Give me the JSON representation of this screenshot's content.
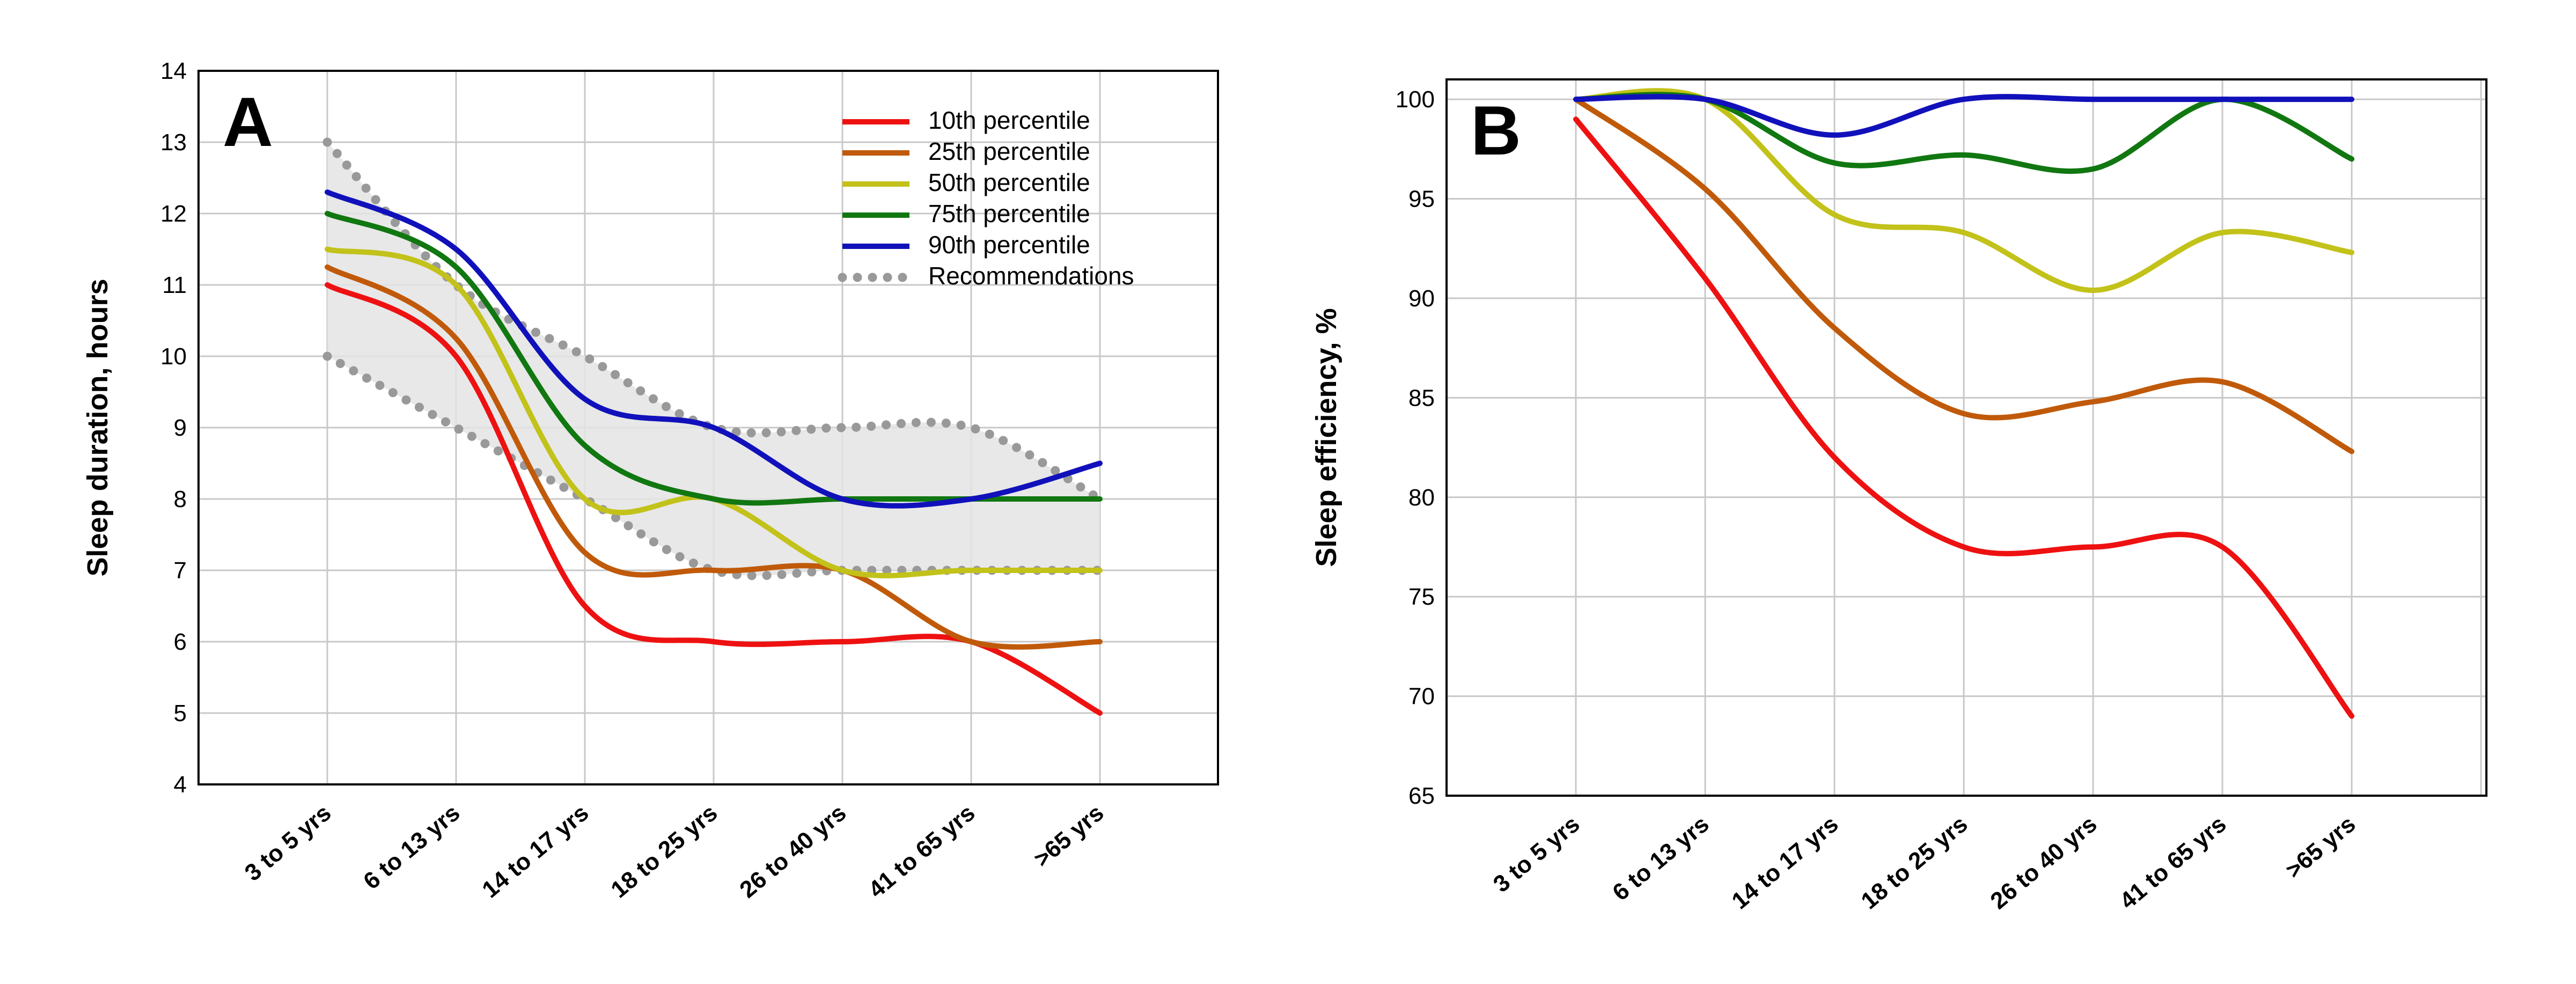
{
  "chart_data": [
    {
      "panel": "A",
      "type": "line",
      "ylabel": "Sleep duration, hours",
      "ylim": [
        4,
        14
      ],
      "yticks": [
        4,
        5,
        6,
        7,
        8,
        9,
        10,
        11,
        12,
        13,
        14
      ],
      "categories": [
        "3 to 5 yrs",
        "6 to 13 yrs",
        "14 to 17 yrs",
        "18 to 25 yrs",
        "26 to 40 yrs",
        "41 to 65 yrs",
        ">65 yrs"
      ],
      "grid": true,
      "legend": "top-right",
      "series": [
        {
          "name": "10th percentile",
          "color": "#ee1111",
          "values": [
            11,
            10,
            6.5,
            6,
            6,
            6,
            5
          ]
        },
        {
          "name": "25th percentile",
          "color": "#c05a0a",
          "values": [
            11.25,
            10.25,
            7.25,
            7,
            7,
            6,
            6
          ]
        },
        {
          "name": "50th percentile",
          "color": "#c2c21a",
          "values": [
            11.5,
            11,
            8,
            8,
            7,
            7,
            7
          ]
        },
        {
          "name": "75th percentile",
          "color": "#117711",
          "values": [
            12,
            11.25,
            8.75,
            8,
            8,
            8,
            8
          ]
        },
        {
          "name": "90th percentile",
          "color": "#1111bb",
          "values": [
            12.3,
            11.5,
            9.4,
            9,
            8,
            8,
            8.5
          ]
        }
      ],
      "recommendations": {
        "name": "Recommendations",
        "color": "#999999",
        "upper": [
          13,
          11,
          10,
          9,
          9,
          9,
          8
        ],
        "lower": [
          10,
          9,
          8,
          7,
          7,
          7,
          7
        ]
      }
    },
    {
      "panel": "B",
      "type": "line",
      "ylabel": "Sleep efficiency, %",
      "ylim": [
        65,
        101
      ],
      "yticks": [
        65,
        70,
        75,
        80,
        85,
        90,
        95,
        100
      ],
      "categories": [
        "3 to 5 yrs",
        "6 to 13 yrs",
        "14 to 17 yrs",
        "18 to 25 yrs",
        "26 to 40 yrs",
        "41 to 65 yrs",
        ">65 yrs"
      ],
      "grid": true,
      "series": [
        {
          "name": "10th percentile",
          "color": "#ee1111",
          "values": [
            99,
            91,
            82,
            77.5,
            77.5,
            77.5,
            69
          ]
        },
        {
          "name": "25th percentile",
          "color": "#c05a0a",
          "values": [
            100,
            95.5,
            88.5,
            84.2,
            84.8,
            85.8,
            82.3
          ]
        },
        {
          "name": "50th percentile",
          "color": "#c2c21a",
          "values": [
            100,
            100,
            94.2,
            93.3,
            90.4,
            93.3,
            92.3
          ]
        },
        {
          "name": "75th percentile",
          "color": "#117711",
          "values": [
            100,
            100,
            96.8,
            97.2,
            96.5,
            100,
            97
          ]
        },
        {
          "name": "90th percentile",
          "color": "#1111bb",
          "values": [
            100,
            100,
            98.2,
            100,
            100,
            100,
            100
          ]
        }
      ]
    }
  ]
}
